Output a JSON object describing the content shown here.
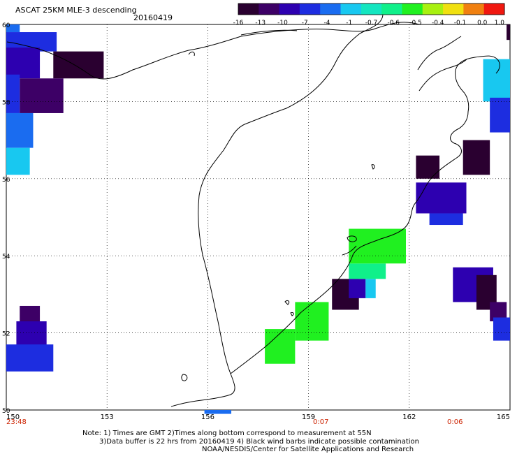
{
  "header": {
    "title": "ASCAT 25KM MLE-3 descending",
    "date": "20160419"
  },
  "colorbar": {
    "labels": [
      "-16",
      "-13",
      "-10",
      "-7",
      "-4",
      "-1",
      "-0.7",
      "-0.6",
      "-0.5",
      "-0.4",
      "-0.1",
      "0.0",
      "1.0"
    ],
    "colors": [
      "#2a0030",
      "#3d0066",
      "#2d00b0",
      "#1d2de0",
      "#1a6cf0",
      "#18c8f0",
      "#14e6c0",
      "#10f08a",
      "#20f020",
      "#a8f010",
      "#f0e010",
      "#f08010",
      "#f01810"
    ]
  },
  "axes": {
    "lon_labels": [
      "150",
      "153",
      "156",
      "159",
      "162",
      "165"
    ],
    "lat_labels": [
      "60",
      "58",
      "56",
      "54",
      "52",
      "50"
    ]
  },
  "times": {
    "t1": "23:48",
    "t2": "0:07",
    "t3": "0:06"
  },
  "notes": {
    "line1": "Note: 1) Times are GMT 2)Times along bottom correspond to measurement at 55N",
    "line2": "3)Data buffer is 22 hrs from 20160419 4) Black wind barbs indicate possible contamination",
    "line3": "NOAA/NESDIS/Center for Satellite Applications and Research"
  },
  "map_data": {
    "lon_range": [
      150,
      165
    ],
    "lat_range": [
      50,
      60
    ],
    "cells": [
      {
        "lon": [
          150.0,
          150.4
        ],
        "lat": [
          59.8,
          60.0
        ],
        "value": "-4"
      },
      {
        "lon": [
          150.0,
          151.5
        ],
        "lat": [
          59.3,
          59.8
        ],
        "value": "-7"
      },
      {
        "lon": [
          151.4,
          152.9
        ],
        "lat": [
          58.6,
          59.3
        ],
        "value": "-16"
      },
      {
        "lon": [
          150.0,
          151.0
        ],
        "lat": [
          58.6,
          59.4
        ],
        "value": "-10"
      },
      {
        "lon": [
          150.4,
          151.7
        ],
        "lat": [
          57.7,
          58.6
        ],
        "value": "-13"
      },
      {
        "lon": [
          150.0,
          150.4
        ],
        "lat": [
          57.7,
          58.7
        ],
        "value": "-7"
      },
      {
        "lon": [
          150.0,
          150.8
        ],
        "lat": [
          56.8,
          57.7
        ],
        "value": "-4"
      },
      {
        "lon": [
          150.0,
          150.7
        ],
        "lat": [
          56.1,
          56.8
        ],
        "value": "-1"
      },
      {
        "lon": [
          150.4,
          151.0
        ],
        "lat": [
          52.1,
          52.7
        ],
        "value": "-13"
      },
      {
        "lon": [
          150.3,
          151.2
        ],
        "lat": [
          51.6,
          52.3
        ],
        "value": "-10"
      },
      {
        "lon": [
          150.0,
          151.4
        ],
        "lat": [
          51.0,
          51.7
        ],
        "value": "-7"
      },
      {
        "lon": [
          155.9,
          156.7
        ],
        "lat": [
          49.9,
          50.0
        ],
        "value": "-4"
      },
      {
        "lon": [
          157.7,
          158.6
        ],
        "lat": [
          51.2,
          52.1
        ],
        "value": "-0.5"
      },
      {
        "lon": [
          158.6,
          159.6
        ],
        "lat": [
          51.8,
          52.8
        ],
        "value": "-0.5"
      },
      {
        "lon": [
          159.7,
          160.5
        ],
        "lat": [
          52.6,
          53.4
        ],
        "value": "-16"
      },
      {
        "lon": [
          160.2,
          160.7
        ],
        "lat": [
          52.9,
          53.4
        ],
        "value": "-10"
      },
      {
        "lon": [
          160.2,
          161.3
        ],
        "lat": [
          53.4,
          53.8
        ],
        "value": "-0.6"
      },
      {
        "lon": [
          160.7,
          161.0
        ],
        "lat": [
          52.9,
          53.4
        ],
        "value": "-1"
      },
      {
        "lon": [
          160.2,
          161.9
        ],
        "lat": [
          53.8,
          54.7
        ],
        "value": "-0.5"
      },
      {
        "lon": [
          163.3,
          164.5
        ],
        "lat": [
          52.8,
          53.7
        ],
        "value": "-10"
      },
      {
        "lon": [
          164.0,
          164.6
        ],
        "lat": [
          52.6,
          53.5
        ],
        "value": "-16"
      },
      {
        "lon": [
          164.4,
          164.9
        ],
        "lat": [
          52.3,
          52.8
        ],
        "value": "-13"
      },
      {
        "lon": [
          164.5,
          165.0
        ],
        "lat": [
          51.8,
          52.4
        ],
        "value": "-7"
      },
      {
        "lon": [
          162.2,
          162.9
        ],
        "lat": [
          56.0,
          56.6
        ],
        "value": "-16"
      },
      {
        "lon": [
          162.2,
          163.7
        ],
        "lat": [
          55.1,
          55.9
        ],
        "value": "-10"
      },
      {
        "lon": [
          162.6,
          163.6
        ],
        "lat": [
          54.8,
          55.1
        ],
        "value": "-7"
      },
      {
        "lon": [
          163.6,
          164.4
        ],
        "lat": [
          56.1,
          57.0
        ],
        "value": "-16"
      },
      {
        "lon": [
          164.2,
          165.0
        ],
        "lat": [
          58.0,
          59.1
        ],
        "value": "-1"
      },
      {
        "lon": [
          164.4,
          165.0
        ],
        "lat": [
          57.2,
          58.1
        ],
        "value": "-7"
      },
      {
        "lon": [
          164.9,
          165.0
        ],
        "lat": [
          59.6,
          60.0
        ],
        "value": "-16"
      },
      {
        "lon": [
          164.9,
          165.0
        ],
        "lat": [
          59.6,
          60.0
        ],
        "value": "-16"
      }
    ]
  }
}
